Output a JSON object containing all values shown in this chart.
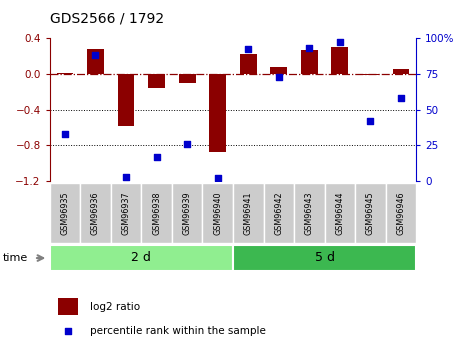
{
  "title": "GDS2566 / 1792",
  "samples": [
    "GSM96935",
    "GSM96936",
    "GSM96937",
    "GSM96938",
    "GSM96939",
    "GSM96940",
    "GSM96941",
    "GSM96942",
    "GSM96943",
    "GSM96944",
    "GSM96945",
    "GSM96946"
  ],
  "log2_ratio": [
    0.01,
    0.28,
    -0.58,
    -0.16,
    -0.1,
    -0.88,
    0.22,
    0.08,
    0.27,
    0.3,
    -0.01,
    0.05
  ],
  "percentile_rank": [
    33,
    88,
    3,
    17,
    26,
    2,
    92,
    73,
    93,
    97,
    42,
    58
  ],
  "groups": [
    {
      "label": "2 d",
      "start": 0,
      "end": 6,
      "color": "#90EE90"
    },
    {
      "label": "5 d",
      "start": 6,
      "end": 12,
      "color": "#3CB850"
    }
  ],
  "bar_color": "#8B0000",
  "dot_color": "#0000CC",
  "ylim_left": [
    -1.2,
    0.4
  ],
  "ylim_right": [
    0,
    100
  ],
  "yticks_left": [
    -1.2,
    -0.8,
    -0.4,
    0.0,
    0.4
  ],
  "yticks_right": [
    0,
    25,
    50,
    75,
    100
  ],
  "hline_y": 0.0,
  "dotted_lines": [
    -0.4,
    -0.8
  ],
  "legend_log2": "log2 ratio",
  "legend_pct": "percentile rank within the sample",
  "time_label": "time",
  "cell_color": "#C8C8C8",
  "cell_color2": "#D8D8D8"
}
